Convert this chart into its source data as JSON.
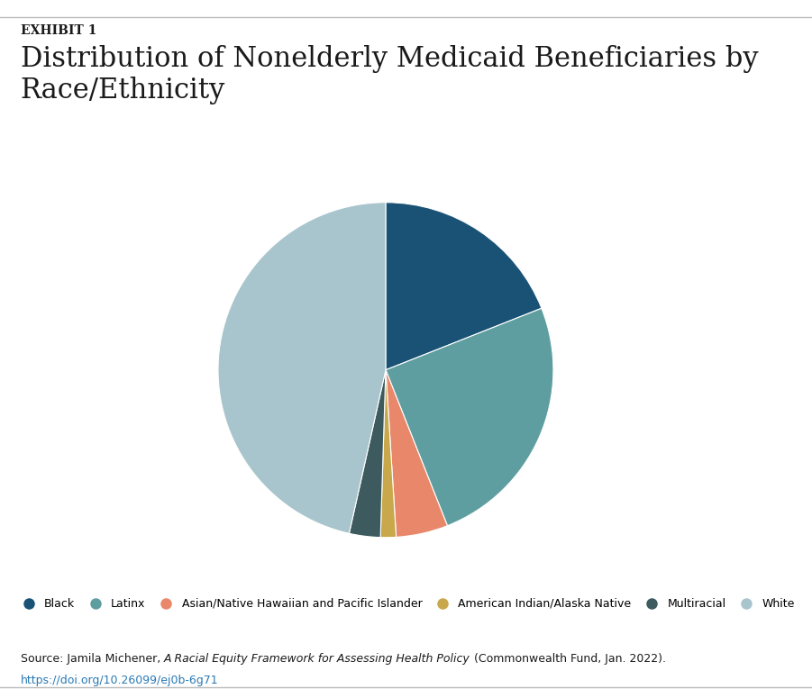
{
  "title_exhibit": "EXHIBIT 1",
  "title": "Distribution of Nonelderly Medicaid Beneficiaries by\nRace/Ethnicity",
  "slices": [
    {
      "label": "Black",
      "value": 19,
      "color": "#1a5276"
    },
    {
      "label": "Latinx",
      "value": 25,
      "color": "#5f9ea0"
    },
    {
      "label": "Asian/Native Hawaiian and Pacific Islander",
      "value": 5,
      "color": "#e8876a"
    },
    {
      "label": "American Indian/Alaska Native",
      "value": 1.5,
      "color": "#c8a84b"
    },
    {
      "label": "Multiracial",
      "value": 3,
      "color": "#3d5a5e"
    },
    {
      "label": "White",
      "value": 46.5,
      "color": "#a8c4cc"
    }
  ],
  "source_text": "Source: Jamila Michener, ",
  "source_italic": "A Racial Equity Framework for Assessing Health Policy",
  "source_end": " (Commonwealth Fund, Jan. 2022).",
  "source_url": "https://doi.org/10.26099/ej0b-6g71",
  "background_color": "#ffffff",
  "text_color": "#1a1a1a",
  "url_color": "#2a7ab5",
  "startangle": 90,
  "fig_width": 9.01,
  "fig_height": 7.75
}
